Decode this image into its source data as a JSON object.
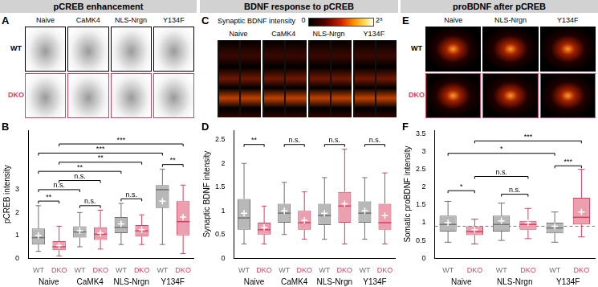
{
  "headers": [
    "pCREB enhancement",
    "BDNF response to pCREB",
    "proBDNF after pCREB"
  ],
  "panels": [
    {
      "letter": "A",
      "rows": [
        "WT",
        "DKO"
      ],
      "columns": [
        "Naive",
        "CaMK4",
        "NLS-Nrgn",
        "Y134F"
      ]
    },
    {
      "letter": "C",
      "columns": [
        "Naive",
        "CaMK4",
        "NLS-Nrgn",
        "Y134F"
      ],
      "colorbar": {
        "label": "Synaptic BDNF intensity",
        "range": [
          0,
          256
        ],
        "ticks": [
          {
            "value": 0,
            "label": "0"
          },
          {
            "value": 256,
            "label": "2⁸"
          }
        ]
      }
    },
    {
      "letter": "E",
      "rows": [
        "WT",
        "DKO"
      ],
      "columns": [
        "Naive",
        "NLS-Nrgn",
        "Y134F"
      ]
    }
  ],
  "chart_data": [
    {
      "type": "box",
      "title": "B",
      "y_label": "pCREB intensity",
      "categories": [
        "WT",
        "DKO",
        "WT",
        "DKO",
        "WT",
        "DKO",
        "WT",
        "DKO"
      ],
      "groups": [
        {
          "label": "Naive",
          "from": 0,
          "to": 1
        },
        {
          "label": "CaMK4",
          "from": 2,
          "to": 3
        },
        {
          "label": "NLS-Nrgn",
          "from": 4,
          "to": 5
        },
        {
          "label": "Y134F",
          "from": 6,
          "to": 7
        }
      ],
      "colors": [
        "#707070",
        "#d8405f",
        "#707070",
        "#d8405f",
        "#707070",
        "#d8405f",
        "#707070",
        "#d8405f"
      ],
      "boxes": {
        "min": [
          0.3,
          0.1,
          0.5,
          0.4,
          0.6,
          0.6,
          0.6,
          0.2
        ],
        "q1": [
          0.6,
          0.35,
          0.9,
          0.8,
          1.1,
          0.95,
          2.2,
          1.0
        ],
        "median": [
          0.9,
          0.5,
          1.15,
          1.05,
          1.35,
          1.2,
          3.0,
          1.6
        ],
        "q3": [
          1.3,
          0.75,
          1.4,
          1.35,
          1.8,
          1.45,
          3.2,
          2.5
        ],
        "max": [
          2.3,
          1.4,
          2.0,
          2.1,
          2.4,
          1.9,
          3.9,
          3.2
        ],
        "mean": [
          1.0,
          0.55,
          1.2,
          1.1,
          1.5,
          1.25,
          2.5,
          1.8
        ]
      },
      "comparisons": [
        {
          "from": 0,
          "to": 1,
          "y": 2.5,
          "label": "**"
        },
        {
          "from": 2,
          "to": 3,
          "y": 2.3,
          "label": "n.s."
        },
        {
          "from": 4,
          "to": 5,
          "y": 2.6,
          "label": "n.s."
        },
        {
          "from": 6,
          "to": 7,
          "y": 4.1,
          "label": "**"
        },
        {
          "from": 0,
          "to": 2,
          "y": 3.0,
          "label": "n.s."
        },
        {
          "from": 1,
          "to": 3,
          "y": 3.4,
          "label": "n.s."
        },
        {
          "from": 0,
          "to": 4,
          "y": 3.8,
          "label": "**"
        },
        {
          "from": 1,
          "to": 5,
          "y": 4.2,
          "label": "**"
        },
        {
          "from": 0,
          "to": 6,
          "y": 4.6,
          "label": "***"
        },
        {
          "from": 1,
          "to": 7,
          "y": 5.0,
          "label": "***"
        }
      ],
      "ylim": [
        0,
        5.6
      ],
      "yticks": [
        0,
        1,
        2,
        3
      ],
      "grid": false
    },
    {
      "type": "box",
      "title": "D",
      "y_label": "Synaptic BDNF intensity",
      "categories": [
        "WT",
        "DKO",
        "WT",
        "DKO",
        "WT",
        "DKO",
        "WT",
        "DKO"
      ],
      "groups": [
        {
          "label": "Naive",
          "from": 0,
          "to": 1
        },
        {
          "label": "CaMK4",
          "from": 2,
          "to": 3
        },
        {
          "label": "NLS-Nrgn",
          "from": 4,
          "to": 5
        },
        {
          "label": "Y134F",
          "from": 6,
          "to": 7
        }
      ],
      "colors": [
        "#707070",
        "#d8405f",
        "#707070",
        "#d8405f",
        "#707070",
        "#d8405f",
        "#707070",
        "#d8405f"
      ],
      "boxes": {
        "min": [
          0.3,
          0.3,
          0.5,
          0.4,
          0.4,
          0.3,
          0.4,
          0.3
        ],
        "q1": [
          0.6,
          0.5,
          0.75,
          0.6,
          0.7,
          0.75,
          0.75,
          0.6
        ],
        "median": [
          0.85,
          0.6,
          0.95,
          0.75,
          0.9,
          1.1,
          0.95,
          0.75
        ],
        "q3": [
          1.25,
          0.75,
          1.15,
          1.0,
          1.15,
          1.4,
          1.2,
          1.15
        ],
        "max": [
          2.0,
          1.1,
          1.6,
          1.4,
          1.7,
          2.3,
          1.7,
          1.8
        ],
        "mean": [
          0.95,
          0.65,
          1.0,
          0.8,
          0.95,
          1.15,
          1.0,
          0.9
        ]
      },
      "comparisons": [
        {
          "from": 0,
          "to": 1,
          "y": 2.4,
          "label": "**"
        },
        {
          "from": 2,
          "to": 3,
          "y": 2.4,
          "label": "n.s."
        },
        {
          "from": 4,
          "to": 5,
          "y": 2.4,
          "label": "n.s."
        },
        {
          "from": 6,
          "to": 7,
          "y": 2.4,
          "label": "n.s."
        }
      ],
      "ylim": [
        0,
        2.7
      ],
      "yticks": [
        0,
        0.5,
        1,
        1.5,
        2,
        2.5
      ],
      "grid": false
    },
    {
      "type": "box",
      "title": "F",
      "y_label": "Somatic proBDNF intensity",
      "categories": [
        "WT",
        "DKO",
        "WT",
        "DKO",
        "WT",
        "DKO"
      ],
      "groups": [
        {
          "label": "Naive",
          "from": 0,
          "to": 1
        },
        {
          "label": "NLS-Nrgn",
          "from": 2,
          "to": 3
        },
        {
          "label": "Y134F",
          "from": 4,
          "to": 5
        }
      ],
      "colors": [
        "#707070",
        "#d8405f",
        "#707070",
        "#d8405f",
        "#707070",
        "#d8405f"
      ],
      "boxes": {
        "min": [
          0.45,
          0.4,
          0.5,
          0.55,
          0.45,
          0.6
        ],
        "q1": [
          0.75,
          0.65,
          0.75,
          0.8,
          0.7,
          0.95
        ],
        "median": [
          0.95,
          0.75,
          0.95,
          0.95,
          0.85,
          1.15
        ],
        "q3": [
          1.2,
          0.9,
          1.2,
          1.05,
          1.0,
          1.7
        ],
        "max": [
          1.6,
          1.1,
          1.55,
          1.4,
          1.3,
          2.5
        ],
        "mean": [
          1.0,
          0.8,
          1.05,
          1.0,
          0.9,
          1.3
        ]
      },
      "reference_line": {
        "value": 0.9,
        "line_style": "dashed"
      },
      "comparisons": [
        {
          "from": 0,
          "to": 1,
          "y": 1.9,
          "label": "*"
        },
        {
          "from": 2,
          "to": 3,
          "y": 1.8,
          "label": "n.s."
        },
        {
          "from": 4,
          "to": 5,
          "y": 2.6,
          "label": "***"
        },
        {
          "from": 1,
          "to": 3,
          "y": 2.3,
          "label": "n.s."
        },
        {
          "from": 0,
          "to": 4,
          "y": 2.95,
          "label": "*"
        },
        {
          "from": 1,
          "to": 5,
          "y": 3.3,
          "label": "***"
        }
      ],
      "ylim": [
        0,
        3.6
      ],
      "yticks": [
        0,
        0.5,
        1,
        1.5,
        2,
        2.5,
        3,
        3.5
      ],
      "grid": false
    }
  ]
}
